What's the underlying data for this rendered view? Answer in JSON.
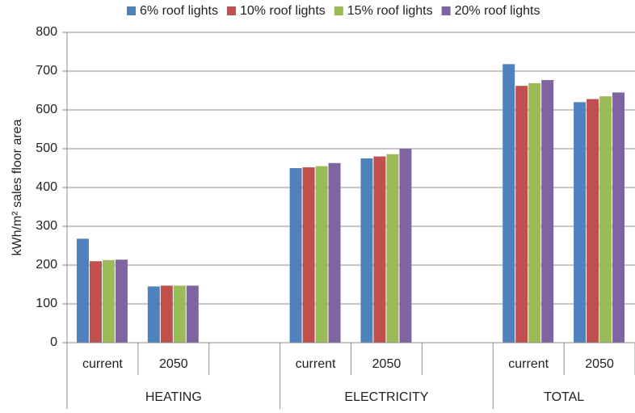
{
  "chart_data": {
    "type": "bar",
    "ylabel": "kWh/m² sales floor area",
    "categories": [
      "current",
      "2050",
      null,
      "current",
      "2050",
      null,
      "current",
      "2050"
    ],
    "category_groups": [
      "HEATING",
      "ELECTRICITY",
      "TOTAL"
    ],
    "series": [
      {
        "name": "6% roof lights",
        "color": "#4f81bd",
        "values": [
          268,
          145,
          null,
          450,
          475,
          null,
          718,
          620
        ]
      },
      {
        "name": "10% roof lights",
        "color": "#c0504d",
        "values": [
          210,
          147,
          null,
          452,
          480,
          null,
          662,
          628
        ]
      },
      {
        "name": "15% roof lights",
        "color": "#9bbb59",
        "values": [
          213,
          147,
          null,
          455,
          486,
          null,
          669,
          635
        ]
      },
      {
        "name": "20% roof lights",
        "color": "#8064a2",
        "values": [
          214,
          147,
          null,
          463,
          500,
          null,
          677,
          645
        ]
      }
    ],
    "ylim": [
      0,
      800
    ],
    "yticks": [
      0,
      100,
      200,
      300,
      400,
      500,
      600,
      700,
      800
    ],
    "grid": true,
    "legend": "top"
  }
}
